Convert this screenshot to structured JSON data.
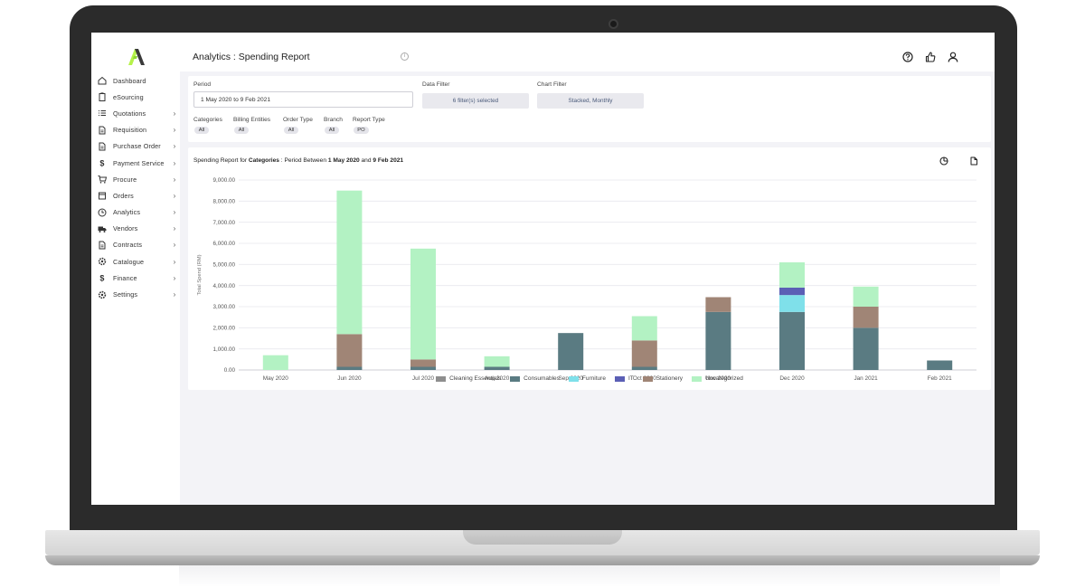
{
  "header": {
    "title": "Analytics : Spending Report",
    "icons": [
      "help-icon",
      "thumbs-up-icon",
      "user-icon"
    ]
  },
  "sidebar": {
    "items": [
      {
        "label": "Dashboard",
        "icon": "home-icon",
        "chevron": false
      },
      {
        "label": "eSourcing",
        "icon": "clipboard-icon",
        "chevron": false
      },
      {
        "label": "Quotations",
        "icon": "list-icon",
        "chevron": true
      },
      {
        "label": "Requisition",
        "icon": "document-icon",
        "chevron": true
      },
      {
        "label": "Purchase Order",
        "icon": "document-icon",
        "chevron": true
      },
      {
        "label": "Payment Service",
        "icon": "dollar-icon",
        "chevron": true
      },
      {
        "label": "Procure",
        "icon": "cart-icon",
        "chevron": true
      },
      {
        "label": "Orders",
        "icon": "calendar-icon",
        "chevron": true
      },
      {
        "label": "Analytics",
        "icon": "clock-icon",
        "chevron": true
      },
      {
        "label": "Vendors",
        "icon": "truck-icon",
        "chevron": true
      },
      {
        "label": "Contracts",
        "icon": "document-icon",
        "chevron": true
      },
      {
        "label": "Catalogue",
        "icon": "gear-icon",
        "chevron": true
      },
      {
        "label": "Finance",
        "icon": "dollar-icon",
        "chevron": true
      },
      {
        "label": "Settings",
        "icon": "gear-icon",
        "chevron": true
      }
    ],
    "chevron_glyph": "›"
  },
  "filters": {
    "period_label": "Period",
    "period_value": "1 May 2020 to 9 Feb 2021",
    "data_filter_label": "Data Filter",
    "data_filter_value": "6 filter(s) selected",
    "chart_filter_label": "Chart Filter",
    "chart_filter_value": "Stacked, Monthly",
    "tags": [
      {
        "label": "Categories",
        "value": "All"
      },
      {
        "label": "Billing Entities",
        "value": "All"
      },
      {
        "label": "Order Type",
        "value": "All"
      },
      {
        "label": "Branch",
        "value": "All"
      },
      {
        "label": "Report Type",
        "value": "PO"
      }
    ]
  },
  "chart_panel": {
    "title_prefix": "Spending Report for ",
    "title_bold1": "Categories",
    "title_mid": " : Period Between ",
    "title_bold2": "1 May 2020",
    "title_and": " and ",
    "title_bold3": "9 Feb 2021",
    "icons": [
      "pie-chart-icon",
      "export-document-icon"
    ]
  },
  "chart_data": {
    "type": "bar",
    "stacked": true,
    "title": "",
    "xlabel": "",
    "ylabel": "Total Spend (RM)",
    "ylim": [
      0,
      9000
    ],
    "yticks": [
      0,
      1000,
      2000,
      3000,
      4000,
      5000,
      6000,
      7000,
      8000,
      9000
    ],
    "ytick_labels": [
      "0.00",
      "1,000.00",
      "2,000.00",
      "3,000.00",
      "4,000.00",
      "5,000.00",
      "6,000.00",
      "7,000.00",
      "8,000.00",
      "9,000.00"
    ],
    "grid": true,
    "legend_position": "bottom",
    "categories": [
      "May 2020",
      "Jun 2020",
      "Jul 2020",
      "Aug 2020",
      "Sep 2020",
      "Oct 2020",
      "Nov 2020",
      "Dec 2020",
      "Jan 2021",
      "Feb 2021"
    ],
    "series": [
      {
        "name": "Cleaning Essentials",
        "color": "#8e8e8e",
        "values": [
          0,
          0,
          0,
          0,
          0,
          0,
          0,
          0,
          0,
          0
        ]
      },
      {
        "name": "Consumables",
        "color": "#5a7b82",
        "values": [
          0,
          150,
          150,
          150,
          1750,
          150,
          2750,
          2750,
          2000,
          450
        ]
      },
      {
        "name": "Furniture",
        "color": "#7fe0ea",
        "values": [
          0,
          0,
          0,
          0,
          0,
          0,
          0,
          800,
          0,
          0
        ]
      },
      {
        "name": "IT",
        "color": "#5b5fb5",
        "values": [
          0,
          0,
          0,
          0,
          0,
          0,
          0,
          350,
          0,
          0
        ]
      },
      {
        "name": "Stationery",
        "color": "#a08576",
        "values": [
          0,
          1550,
          350,
          0,
          0,
          1250,
          700,
          0,
          1000,
          0
        ]
      },
      {
        "name": "Uncategorized",
        "color": "#b3f2c3",
        "values": [
          700,
          6800,
          5250,
          500,
          0,
          1150,
          0,
          1200,
          950,
          0
        ]
      }
    ]
  }
}
